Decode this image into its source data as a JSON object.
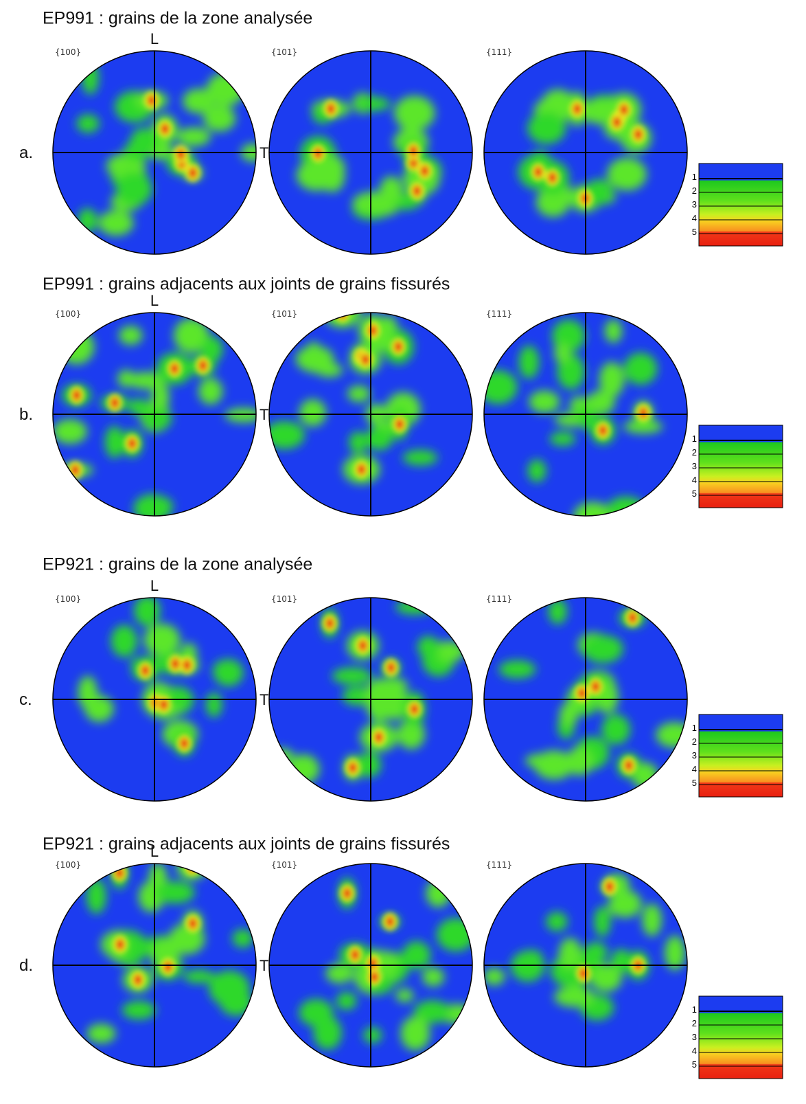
{
  "rows": [
    {
      "label": "a.",
      "title": "EP991 : grains de la zone analysée",
      "axis_L": "L",
      "axis_T": "T",
      "figures": [
        "{100}",
        "{101}",
        "{111}"
      ],
      "legend": [
        "1",
        "2",
        "3",
        "4",
        "5"
      ]
    },
    {
      "label": "b.",
      "title": "EP991 : grains adjacents aux joints de grains fissurés",
      "axis_L": "L",
      "axis_T": "T",
      "figures": [
        "{100}",
        "{101}",
        "{111}"
      ],
      "legend": [
        "1",
        "2",
        "3",
        "4",
        "5"
      ]
    },
    {
      "label": "c.",
      "title": "EP921 : grains de la zone analysée",
      "axis_L": "L",
      "axis_T": "T",
      "figures": [
        "{100}",
        "{101}",
        "{111}"
      ],
      "legend": [
        "1",
        "2",
        "3",
        "4",
        "5"
      ]
    },
    {
      "label": "d.",
      "title": "EP921 : grains adjacents aux joints de grains fissurés",
      "axis_L": "L",
      "axis_T": "T",
      "figures": [
        "{100}",
        "{101}",
        "{111}"
      ],
      "legend": [
        "1",
        "2",
        "3",
        "4",
        "5"
      ]
    }
  ]
}
